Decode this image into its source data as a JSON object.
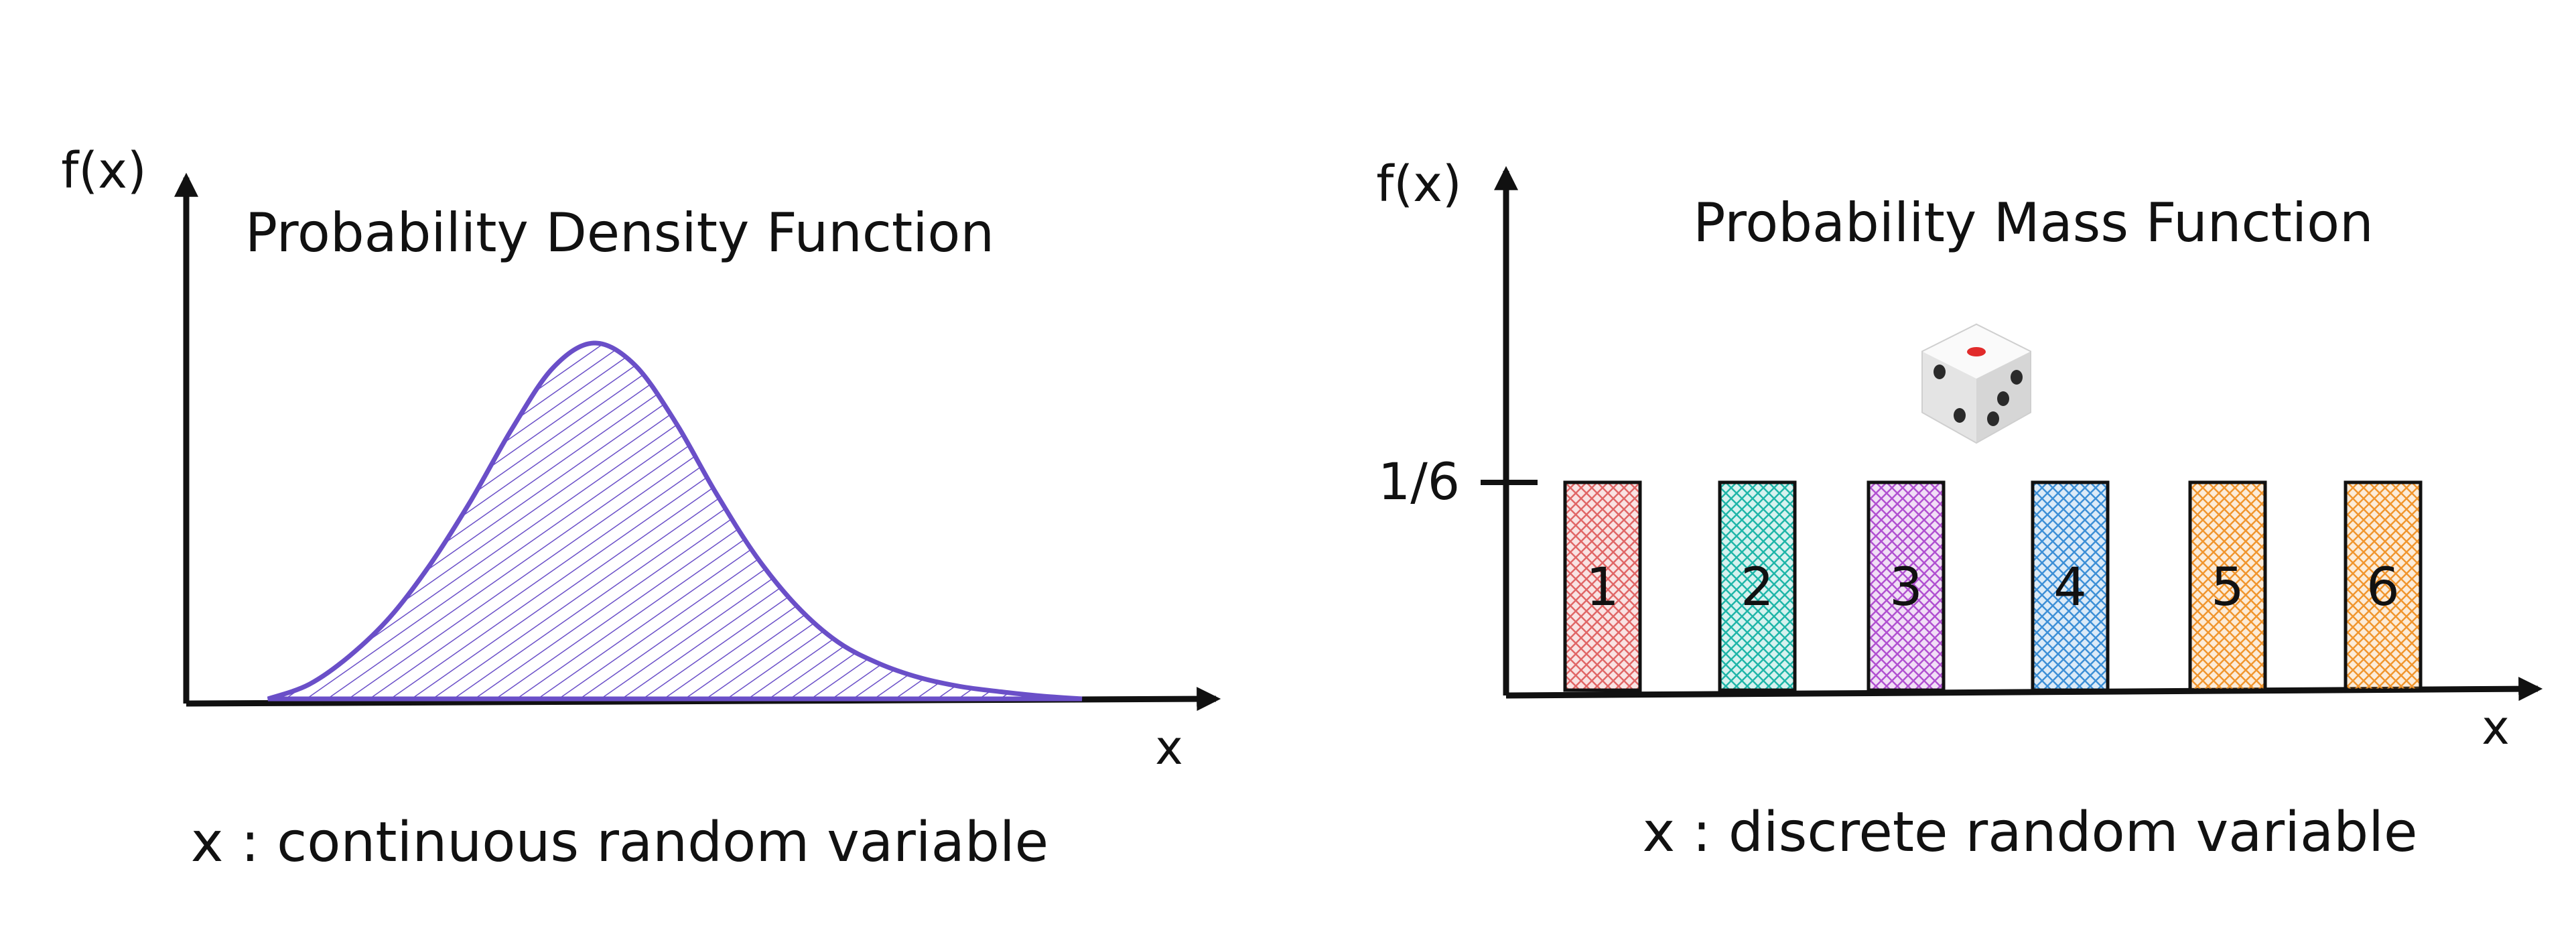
{
  "chart_data": [
    {
      "type": "area",
      "title": "Probability Density Function",
      "ylabel": "f(x)",
      "xlabel": "x",
      "caption": "x : continuous random variable",
      "fill_color": "#6a4fc8",
      "grid": false,
      "series": [
        {
          "x": [
            0,
            0.5,
            1,
            1.5,
            2,
            2.5,
            3,
            3.5,
            4,
            4.5,
            5,
            5.5,
            6,
            6.5,
            7,
            7.5,
            8,
            8.5,
            9,
            9.5,
            10
          ],
          "values": [
            0.0,
            0.04,
            0.12,
            0.23,
            0.38,
            0.56,
            0.76,
            0.93,
            1.0,
            0.94,
            0.78,
            0.58,
            0.4,
            0.26,
            0.16,
            0.1,
            0.06,
            0.035,
            0.02,
            0.008,
            0.0
          ]
        }
      ]
    },
    {
      "type": "bar",
      "title": "Probability Mass Function",
      "ylabel": "f(x)",
      "xlabel": "x",
      "caption": "x : discrete random variable",
      "categories": [
        "1",
        "2",
        "3",
        "4",
        "5",
        "6"
      ],
      "values": [
        0.1667,
        0.1667,
        0.1667,
        0.1667,
        0.1667,
        0.1667
      ],
      "y_tick_label": "1/6",
      "bar_colors": [
        "#e06666",
        "#1fb5a8",
        "#b050d0",
        "#3d8fd6",
        "#f0952e",
        "#f0952e"
      ],
      "icon": "die-icon",
      "grid": false
    }
  ]
}
